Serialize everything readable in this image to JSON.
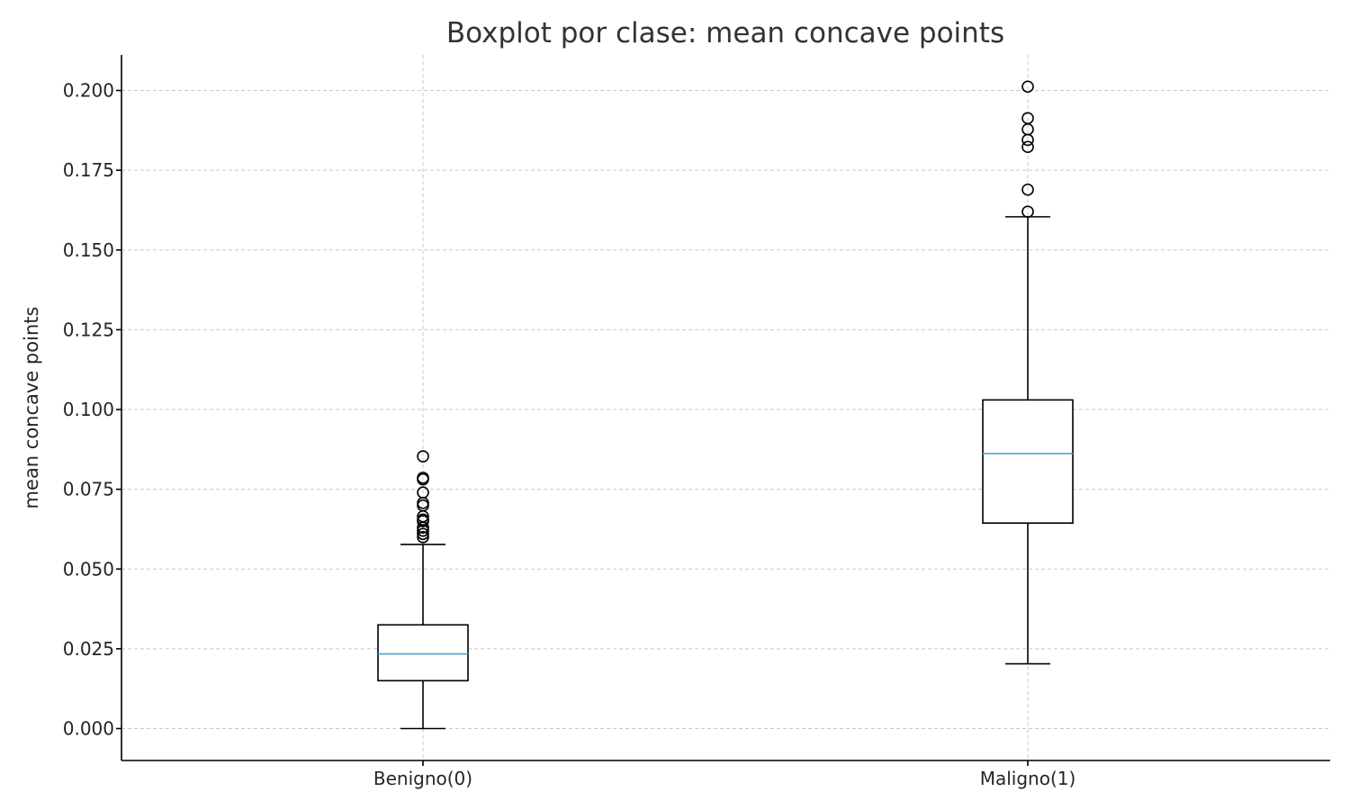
{
  "chart_data": {
    "type": "boxplot",
    "title": "Boxplot por clase: mean concave points",
    "xlabel": "",
    "ylabel": "mean concave points",
    "categories": [
      "Benigno(0)",
      "Maligno(1)"
    ],
    "ylim": [
      -0.0095,
      0.2113
    ],
    "yticks": [
      0.0,
      0.025,
      0.05,
      0.075,
      0.1,
      0.125,
      0.15,
      0.175,
      0.2
    ],
    "ytick_labels": [
      "0.000",
      "0.025",
      "0.050",
      "0.075",
      "0.100",
      "0.125",
      "0.150",
      "0.175",
      "0.200"
    ],
    "grid": true,
    "median_color": "#4fa3d6",
    "boxes": [
      {
        "category": "Benigno(0)",
        "whisker_low": 0.0,
        "q1": 0.015,
        "median": 0.0234,
        "q3": 0.0325,
        "whisker_high": 0.0577,
        "fliers": [
          0.0853,
          0.0786,
          0.0781,
          0.074,
          0.0707,
          0.0699,
          0.0665,
          0.0655,
          0.065,
          0.063,
          0.062,
          0.061,
          0.06
        ]
      },
      {
        "category": "Maligno(1)",
        "whisker_low": 0.0203,
        "q1": 0.0644,
        "median": 0.0862,
        "q3": 0.103,
        "whisker_high": 0.1604,
        "fliers": [
          0.2012,
          0.1913,
          0.1878,
          0.1845,
          0.1823,
          0.1689,
          0.162
        ]
      }
    ]
  }
}
